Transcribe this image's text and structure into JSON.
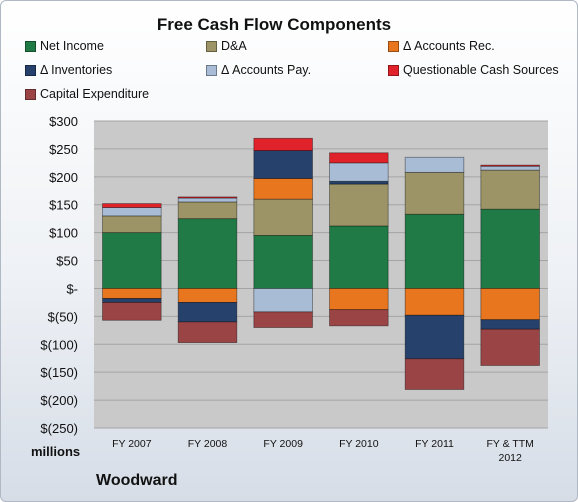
{
  "chart_data": {
    "type": "stacked-bar",
    "title": "Free Cash Flow Components",
    "units_label": "millions",
    "company": "Woodward",
    "categories": [
      "FY 2007",
      "FY 2008",
      "FY 2009",
      "FY 2010",
      "FY 2011",
      "FY & TTM 2012"
    ],
    "ylim": [
      -250,
      300
    ],
    "y_ticks": [
      300,
      250,
      200,
      150,
      100,
      50,
      0,
      -50,
      -100,
      -150,
      -200,
      -250
    ],
    "y_tick_labels": [
      "$300",
      "$250",
      "$200",
      "$150",
      "$100",
      "$50",
      "$-",
      "$(50)",
      "$(100)",
      "$(150)",
      "$(200)",
      "$(250)"
    ],
    "legend_position": "top",
    "series": [
      {
        "name": "Net Income",
        "color": "#1f7a45",
        "values": [
          100,
          125,
          95,
          112,
          133,
          142
        ]
      },
      {
        "name": "D&A",
        "color": "#9c9466",
        "values": [
          30,
          30,
          65,
          75,
          75,
          70
        ]
      },
      {
        "name": "Δ Accounts Rec.",
        "color": "#e8761f",
        "values": [
          -18,
          -25,
          37,
          -38,
          -48,
          -56
        ]
      },
      {
        "name": "Δ Inventories",
        "color": "#26416b",
        "values": [
          -7,
          -35,
          50,
          5,
          -78,
          -17
        ]
      },
      {
        "name": "Δ Accounts Pay.",
        "color": "#a8bcd6",
        "values": [
          15,
          7,
          -42,
          33,
          27,
          7
        ]
      },
      {
        "name": "Questionable Cash Sources",
        "color": "#e0222b",
        "values": [
          7,
          2,
          22,
          18,
          0,
          2
        ]
      },
      {
        "name": "Capital Expenditure",
        "color": "#9b4446",
        "values": [
          -32,
          -37,
          -28,
          -29,
          -55,
          -65
        ]
      }
    ]
  }
}
